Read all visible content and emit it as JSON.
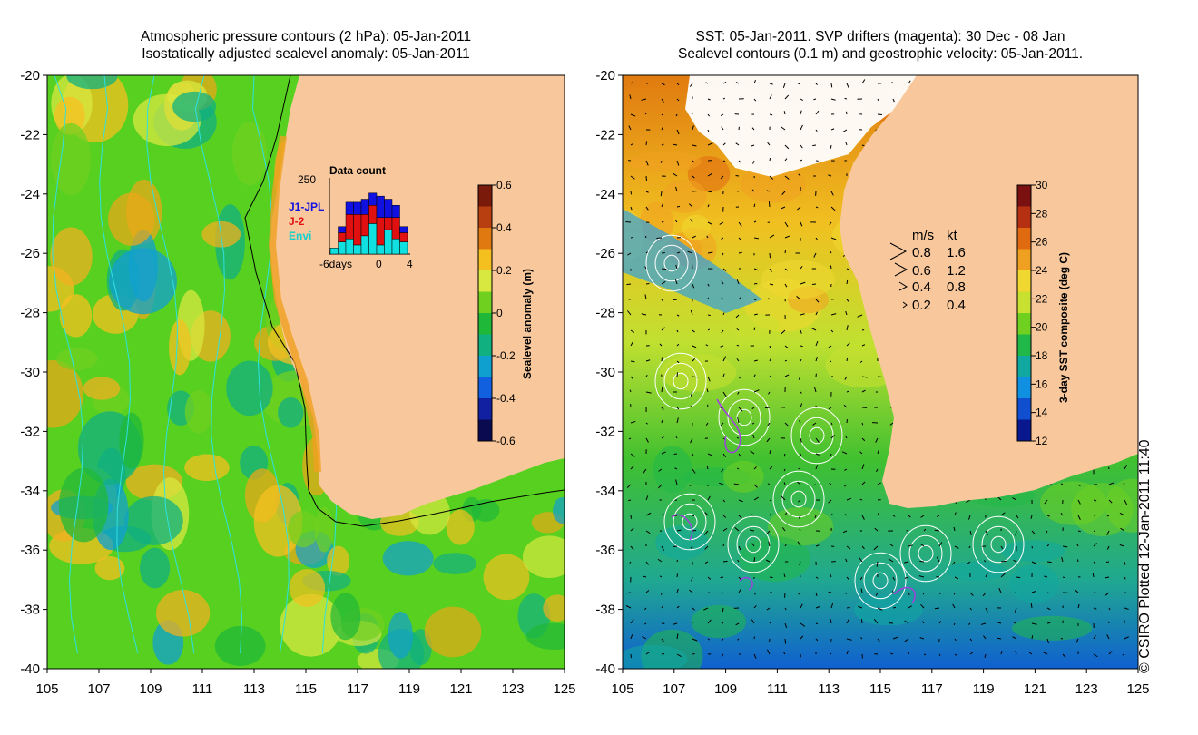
{
  "left_panel": {
    "title_line1": "Atmospheric pressure contours (2 hPa): 05-Jan-2011",
    "title_line2": "Isostatically adjusted sealevel anomaly: 05-Jan-2011",
    "colorbar_label": "Sealevel anomaly (m)",
    "colorbar_ticks": [
      "0.6",
      "0.4",
      "0.2",
      "0",
      "-0.2",
      "-0.4",
      "-0.6"
    ],
    "colorbar_colors": [
      "#7a1a0a",
      "#b84010",
      "#e07a10",
      "#f4c020",
      "#d8e840",
      "#70d020",
      "#20b838",
      "#10b080",
      "#10a0d0",
      "#1060e0",
      "#1020a0",
      "#0a0a50"
    ]
  },
  "right_panel": {
    "title_line1": "SST: 05-Jan-2011. SVP drifters (magenta): 30 Dec - 08 Jan",
    "title_line2": "Sealevel contours (0.1 m) and geostrophic velocity: 05-Jan-2011.",
    "colorbar_label": "3-day SST composite (deg C)",
    "colorbar_ticks": [
      "30",
      "28",
      "26",
      "24",
      "22",
      "20",
      "18",
      "16",
      "14",
      "12"
    ],
    "colorbar_colors": [
      "#7a1010",
      "#b43010",
      "#e06a10",
      "#f0a020",
      "#f0d830",
      "#c8e030",
      "#70d020",
      "#20b848",
      "#10a8a0",
      "#1090e0",
      "#1050d0",
      "#0a1890"
    ]
  },
  "y_axis_ticks": [
    "-20",
    "-22",
    "-24",
    "-26",
    "-28",
    "-30",
    "-32",
    "-34",
    "-36",
    "-38",
    "-40"
  ],
  "x_axis_ticks": [
    "105",
    "107",
    "109",
    "111",
    "113",
    "115",
    "117",
    "119",
    "121",
    "123",
    "125"
  ],
  "data_count": {
    "title": "Data count",
    "max_label": "250",
    "x_labels": [
      "-6days",
      "0",
      "4"
    ],
    "legend": [
      {
        "label": "J1-JPL",
        "color": "#1010e0"
      },
      {
        "label": "J-2",
        "color": "#e01010"
      },
      {
        "label": "Envi",
        "color": "#10e0e0"
      }
    ],
    "bars": [
      {
        "envi": 20,
        "j2": 0,
        "j1": 0
      },
      {
        "envi": 40,
        "j2": 30,
        "j1": 20
      },
      {
        "envi": 50,
        "j2": 80,
        "j1": 40
      },
      {
        "envi": 30,
        "j2": 100,
        "j1": 40
      },
      {
        "envi": 60,
        "j2": 70,
        "j1": 50
      },
      {
        "envi": 100,
        "j2": 60,
        "j1": 40
      },
      {
        "envi": 30,
        "j2": 90,
        "j1": 70
      },
      {
        "envi": 80,
        "j2": 40,
        "j1": 60
      },
      {
        "envi": 50,
        "j2": 70,
        "j1": 40
      },
      {
        "envi": 40,
        "j2": 30,
        "j1": 20
      }
    ]
  },
  "velocity_legend": {
    "header_ms": "m/s",
    "header_kt": "kt",
    "rows": [
      {
        "ms": "0.8",
        "kt": "1.6"
      },
      {
        "ms": "0.6",
        "kt": "1.2"
      },
      {
        "ms": "0.4",
        "kt": "0.8"
      },
      {
        "ms": "0.2",
        "kt": "0.4"
      }
    ]
  },
  "credit": "© CSIRO Plotted 12-Jan-2011 11:40",
  "colors": {
    "land": "#f8c89c",
    "left_base": "#58d020",
    "right_base": "#30c040",
    "pressure_contour": "#30e0e0",
    "sealevel_contour": "#ffffff",
    "drifter": "#a040e0"
  }
}
